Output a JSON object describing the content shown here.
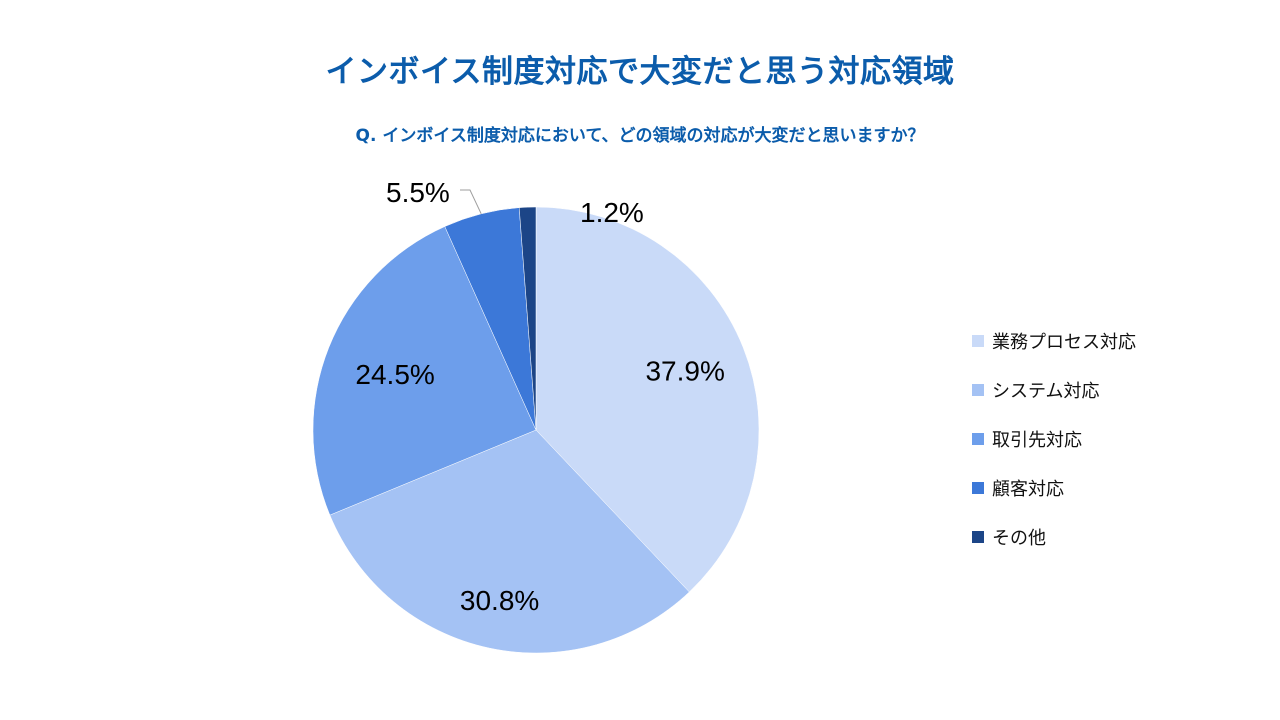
{
  "title": "インボイス制度対応で大変だと思う対応領域",
  "subtitle": "Q. インボイス制度対応において、どの領域の対応が大変だと思いますか？",
  "chart_data": {
    "type": "pie",
    "start_angle_deg": 0,
    "direction": "clockwise",
    "legend_position": "right",
    "slices": [
      {
        "label": "業務プロセス対応",
        "value": 37.9,
        "value_label": "37.9%",
        "color": "#c9daf8"
      },
      {
        "label": "システム対応",
        "value": 30.8,
        "value_label": "30.8%",
        "color": "#a4c2f4"
      },
      {
        "label": "取引先対応",
        "value": 24.5,
        "value_label": "24.5%",
        "color": "#6d9eeb"
      },
      {
        "label": "顧客対応",
        "value": 5.5,
        "value_label": "5.5%",
        "color": "#3c78d8"
      },
      {
        "label": "その他",
        "value": 1.2,
        "value_label": "1.2%",
        "color": "#1c4587"
      }
    ]
  }
}
